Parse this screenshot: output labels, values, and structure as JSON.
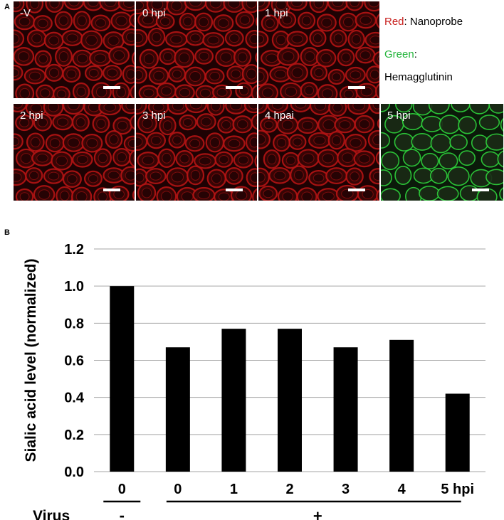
{
  "panel_a": {
    "letter": "A",
    "tiles": [
      {
        "label": "-V",
        "stain": "red"
      },
      {
        "label": "0 hpi",
        "stain": "red"
      },
      {
        "label": "1 hpi",
        "stain": "red"
      },
      {
        "label": "2 hpi",
        "stain": "red"
      },
      {
        "label": "3 hpi",
        "stain": "red"
      },
      {
        "label": "4 hpai",
        "stain": "red"
      },
      {
        "label": "5 hpi",
        "stain": "green"
      }
    ],
    "legend": {
      "red_word": "Red",
      "red_rest": ": Nanoprobe",
      "green_word": "Green",
      "green_rest": ":",
      "green_line2": "Hemagglutinin"
    },
    "colors": {
      "red": "#c8201e",
      "green": "#22b43a"
    }
  },
  "panel_b": {
    "letter": "B"
  },
  "chart_data": {
    "type": "bar",
    "categories": [
      "0",
      "0",
      "1",
      "2",
      "3",
      "4",
      "5 hpi"
    ],
    "values": [
      1.0,
      0.67,
      0.77,
      0.77,
      0.67,
      0.71,
      0.42
    ],
    "ylabel": "Sialic acid level (normalized)",
    "xlabel": "",
    "ylim": [
      0,
      1.2
    ],
    "yticks": [
      "0.0",
      "0.2",
      "0.4",
      "0.6",
      "0.8",
      "1.0",
      "1.2"
    ],
    "grid": true,
    "bar_color": "#000000",
    "virus_row": {
      "label": "Virus",
      "minus": "-",
      "plus": "+"
    }
  }
}
